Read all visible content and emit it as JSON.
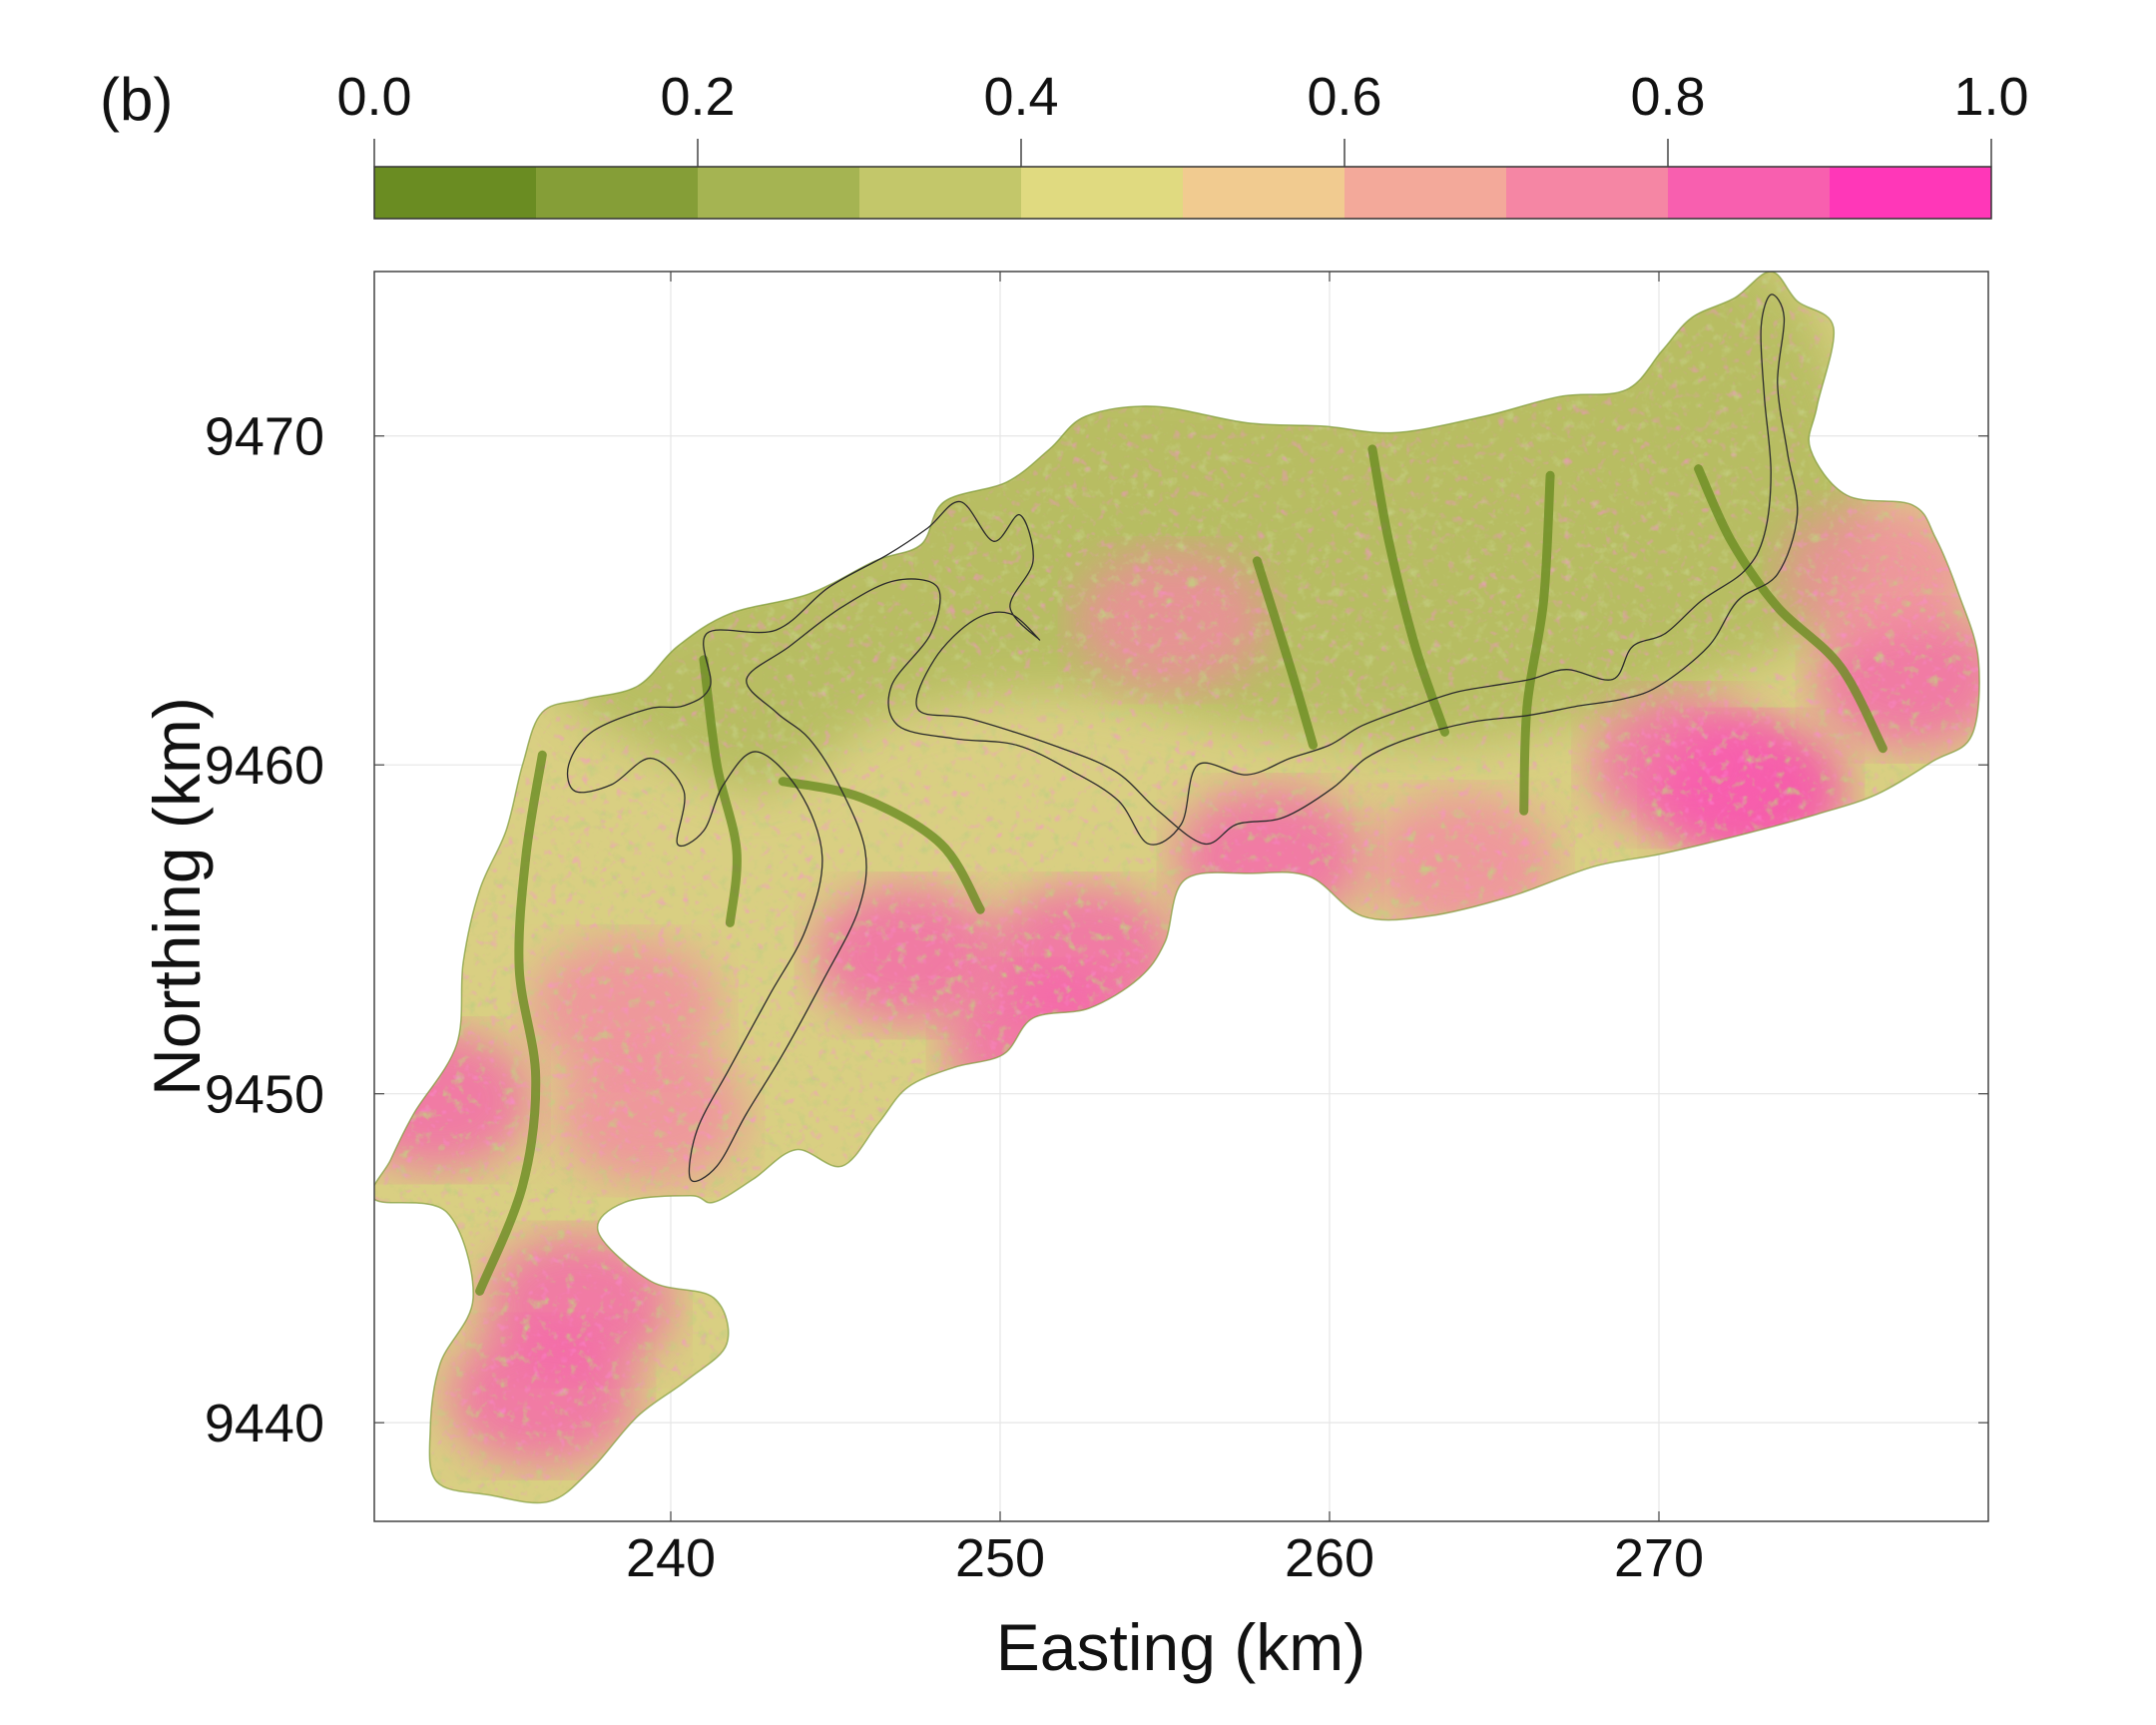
{
  "panel_label": "(b)",
  "colorbar": {
    "ticks": [
      "0.0",
      "0.2",
      "0.4",
      "0.6",
      "0.8",
      "1.0"
    ],
    "tick_values": [
      0.0,
      0.2,
      0.4,
      0.6,
      0.8,
      1.0
    ],
    "bins": [
      {
        "from": 0.0,
        "to": 0.1,
        "color": "#6a8c22"
      },
      {
        "from": 0.1,
        "to": 0.2,
        "color": "#859e37"
      },
      {
        "from": 0.2,
        "to": 0.3,
        "color": "#a5b452"
      },
      {
        "from": 0.3,
        "to": 0.4,
        "color": "#c3c76a"
      },
      {
        "from": 0.4,
        "to": 0.5,
        "color": "#e0da80"
      },
      {
        "from": 0.5,
        "to": 0.6,
        "color": "#f1cb90"
      },
      {
        "from": 0.6,
        "to": 0.7,
        "color": "#f3a99a"
      },
      {
        "from": 0.7,
        "to": 0.8,
        "color": "#f586a4"
      },
      {
        "from": 0.8,
        "to": 0.9,
        "color": "#f85faf"
      },
      {
        "from": 0.9,
        "to": 1.0,
        "color": "#ff37b8"
      }
    ]
  },
  "chart_data": {
    "type": "heatmap",
    "description_of_values": "raster field on 0.0 to 1.0 color scale",
    "xlabel": "Easting (km)",
    "ylabel": "Northing (km)",
    "xlim": [
      231,
      280
    ],
    "ylim": [
      9437,
      9475
    ],
    "xticks": [
      240,
      250,
      260,
      270
    ],
    "yticks": [
      9440,
      9450,
      9460,
      9470
    ],
    "grid": true,
    "region_outline": [
      [
        231.0,
        9446.8
      ],
      [
        233.2,
        9446.4
      ],
      [
        234.0,
        9443.8
      ],
      [
        233.0,
        9441.8
      ],
      [
        232.7,
        9439.8
      ],
      [
        232.9,
        9438.2
      ],
      [
        234.5,
        9437.8
      ],
      [
        236.3,
        9437.6
      ],
      [
        237.6,
        9438.6
      ],
      [
        239.0,
        9440.2
      ],
      [
        240.5,
        9441.3
      ],
      [
        241.7,
        9442.4
      ],
      [
        241.3,
        9443.8
      ],
      [
        239.4,
        9444.3
      ],
      [
        237.8,
        9445.8
      ],
      [
        238.6,
        9446.7
      ],
      [
        240.6,
        9446.9
      ],
      [
        241.3,
        9446.7
      ],
      [
        242.5,
        9447.4
      ],
      [
        243.8,
        9448.3
      ],
      [
        245.2,
        9447.8
      ],
      [
        246.3,
        9449.1
      ],
      [
        247.2,
        9450.2
      ],
      [
        248.6,
        9450.8
      ],
      [
        250.1,
        9451.2
      ],
      [
        251.0,
        9452.3
      ],
      [
        252.7,
        9452.6
      ],
      [
        254.2,
        9453.5
      ],
      [
        255.0,
        9454.6
      ],
      [
        255.6,
        9456.5
      ],
      [
        257.6,
        9456.7
      ],
      [
        259.4,
        9456.6
      ],
      [
        261.0,
        9455.4
      ],
      [
        263.0,
        9455.4
      ],
      [
        265.5,
        9456.0
      ],
      [
        268.0,
        9456.9
      ],
      [
        270.1,
        9457.3
      ],
      [
        272.6,
        9457.9
      ],
      [
        274.8,
        9458.5
      ],
      [
        276.6,
        9459.1
      ],
      [
        278.3,
        9460.1
      ],
      [
        279.5,
        9460.9
      ],
      [
        279.7,
        9463.2
      ],
      [
        279.1,
        9465.2
      ],
      [
        278.4,
        9466.9
      ],
      [
        277.7,
        9467.9
      ],
      [
        275.7,
        9468.2
      ],
      [
        274.6,
        9469.6
      ],
      [
        274.8,
        9470.9
      ],
      [
        275.3,
        9473.3
      ],
      [
        274.2,
        9474.1
      ],
      [
        273.4,
        9475.0
      ],
      [
        272.3,
        9474.2
      ],
      [
        271.0,
        9473.6
      ],
      [
        270.1,
        9472.6
      ],
      [
        269.0,
        9471.4
      ],
      [
        267.0,
        9471.2
      ],
      [
        264.7,
        9470.6
      ],
      [
        262.0,
        9470.1
      ],
      [
        259.8,
        9470.3
      ],
      [
        257.5,
        9470.4
      ],
      [
        254.7,
        9470.9
      ],
      [
        252.6,
        9470.6
      ],
      [
        251.5,
        9469.6
      ],
      [
        250.2,
        9468.6
      ],
      [
        248.3,
        9468.0
      ],
      [
        247.6,
        9466.7
      ],
      [
        246.2,
        9466.2
      ],
      [
        244.2,
        9465.2
      ],
      [
        241.8,
        9464.6
      ],
      [
        240.2,
        9463.6
      ],
      [
        239.0,
        9462.4
      ],
      [
        237.4,
        9462.0
      ],
      [
        236.1,
        9461.6
      ],
      [
        235.5,
        9460.0
      ],
      [
        235.0,
        9458.0
      ],
      [
        234.2,
        9456.2
      ],
      [
        233.7,
        9454.0
      ],
      [
        233.5,
        9451.5
      ],
      [
        232.2,
        9449.4
      ],
      [
        231.5,
        9448.0
      ]
    ],
    "inner_boundary": [
      [
        236.9,
        9460.0
      ],
      [
        237.6,
        9461.0
      ],
      [
        239.3,
        9461.7
      ],
      [
        240.4,
        9461.8
      ],
      [
        241.2,
        9462.4
      ],
      [
        241.1,
        9464.0
      ],
      [
        243.2,
        9464.1
      ],
      [
        244.8,
        9465.4
      ],
      [
        246.6,
        9466.4
      ],
      [
        247.8,
        9467.2
      ],
      [
        248.8,
        9468.0
      ],
      [
        249.8,
        9466.8
      ],
      [
        250.6,
        9467.6
      ],
      [
        251.0,
        9466.2
      ],
      [
        250.3,
        9464.8
      ],
      [
        251.2,
        9463.8
      ],
      [
        250.3,
        9464.6
      ],
      [
        249.2,
        9464.4
      ],
      [
        248.0,
        9463.2
      ],
      [
        247.5,
        9461.7
      ],
      [
        249.1,
        9461.4
      ],
      [
        251.6,
        9460.6
      ],
      [
        253.5,
        9459.8
      ],
      [
        254.8,
        9458.6
      ],
      [
        256.2,
        9457.6
      ],
      [
        257.2,
        9458.2
      ],
      [
        258.6,
        9458.4
      ],
      [
        260.1,
        9459.3
      ],
      [
        261.1,
        9460.2
      ],
      [
        262.4,
        9460.8
      ],
      [
        264.3,
        9461.3
      ],
      [
        266.0,
        9461.5
      ],
      [
        267.6,
        9461.8
      ],
      [
        268.9,
        9462.0
      ],
      [
        270.0,
        9462.4
      ],
      [
        271.5,
        9463.6
      ],
      [
        272.4,
        9465.0
      ],
      [
        273.6,
        9465.8
      ],
      [
        274.2,
        9467.6
      ],
      [
        273.9,
        9469.5
      ],
      [
        273.6,
        9471.6
      ],
      [
        273.8,
        9473.6
      ],
      [
        273.4,
        9474.3
      ],
      [
        273.1,
        9473.3
      ],
      [
        273.2,
        9471.2
      ],
      [
        273.4,
        9468.9
      ],
      [
        273.2,
        9467.0
      ],
      [
        272.6,
        9465.9
      ],
      [
        271.3,
        9465.0
      ],
      [
        270.2,
        9464.0
      ],
      [
        269.2,
        9463.6
      ],
      [
        268.6,
        9462.6
      ],
      [
        267.2,
        9462.9
      ],
      [
        266.1,
        9462.6
      ],
      [
        264.9,
        9462.4
      ],
      [
        263.8,
        9462.2
      ],
      [
        262.6,
        9461.8
      ],
      [
        261.0,
        9461.2
      ],
      [
        260.0,
        9460.6
      ],
      [
        258.8,
        9460.2
      ],
      [
        257.5,
        9459.7
      ],
      [
        256.0,
        9460.0
      ],
      [
        255.5,
        9458.2
      ],
      [
        254.5,
        9457.6
      ],
      [
        253.6,
        9458.9
      ],
      [
        252.2,
        9459.8
      ],
      [
        250.5,
        9460.6
      ],
      [
        248.6,
        9460.8
      ],
      [
        246.9,
        9461.2
      ],
      [
        246.7,
        9462.4
      ],
      [
        247.9,
        9464.0
      ],
      [
        248.1,
        9465.4
      ],
      [
        246.8,
        9465.6
      ],
      [
        245.2,
        9464.8
      ],
      [
        243.6,
        9463.6
      ],
      [
        242.3,
        9462.6
      ],
      [
        243.2,
        9461.6
      ],
      [
        244.2,
        9460.8
      ],
      [
        245.1,
        9459.4
      ],
      [
        245.9,
        9457.4
      ],
      [
        245.7,
        9455.6
      ],
      [
        244.6,
        9453.4
      ],
      [
        243.4,
        9451.2
      ],
      [
        242.3,
        9449.4
      ],
      [
        241.4,
        9447.8
      ],
      [
        240.6,
        9447.4
      ],
      [
        240.8,
        9448.9
      ],
      [
        241.8,
        9450.8
      ],
      [
        243.0,
        9453.0
      ],
      [
        244.1,
        9455.0
      ],
      [
        244.6,
        9457.2
      ],
      [
        243.9,
        9459.2
      ],
      [
        242.6,
        9460.4
      ],
      [
        241.6,
        9459.4
      ],
      [
        241.0,
        9458.0
      ],
      [
        240.2,
        9457.6
      ],
      [
        240.4,
        9459.2
      ],
      [
        239.4,
        9460.2
      ],
      [
        238.2,
        9459.4
      ],
      [
        237.1,
        9459.2
      ]
    ],
    "valleys": [
      [
        [
          234.2,
          9444.0
        ],
        [
          235.5,
          9447.2
        ],
        [
          235.9,
          9450.5
        ],
        [
          235.4,
          9453.8
        ],
        [
          235.6,
          9457.2
        ],
        [
          236.1,
          9460.3
        ]
      ],
      [
        [
          241.0,
          9463.2
        ],
        [
          241.4,
          9460.0
        ],
        [
          242.0,
          9457.4
        ],
        [
          241.8,
          9455.2
        ]
      ],
      [
        [
          243.4,
          9459.5
        ],
        [
          245.8,
          9459.0
        ],
        [
          248.2,
          9457.6
        ],
        [
          249.4,
          9455.6
        ]
      ],
      [
        [
          257.8,
          9466.2
        ],
        [
          258.8,
          9463.0
        ],
        [
          259.5,
          9460.6
        ]
      ],
      [
        [
          266.7,
          9468.8
        ],
        [
          266.5,
          9465.0
        ],
        [
          266.0,
          9461.8
        ],
        [
          265.9,
          9458.6
        ]
      ],
      [
        [
          271.2,
          9469.0
        ],
        [
          272.2,
          9466.8
        ],
        [
          273.6,
          9464.8
        ],
        [
          275.5,
          9463.0
        ],
        [
          276.8,
          9460.5
        ]
      ],
      [
        [
          261.3,
          9469.6
        ],
        [
          261.8,
          9466.8
        ],
        [
          262.6,
          9463.6
        ],
        [
          263.5,
          9461.0
        ]
      ]
    ],
    "hotspots": [
      {
        "x": 237.2,
        "y": 9443.6,
        "value": 0.9
      },
      {
        "x": 236.1,
        "y": 9440.8,
        "value": 0.85
      },
      {
        "x": 232.9,
        "y": 9449.8,
        "value": 0.85
      },
      {
        "x": 239.4,
        "y": 9449.4,
        "value": 0.8
      },
      {
        "x": 238.6,
        "y": 9452.6,
        "value": 0.8
      },
      {
        "x": 247.2,
        "y": 9454.2,
        "value": 0.85
      },
      {
        "x": 252.5,
        "y": 9454.2,
        "value": 0.85
      },
      {
        "x": 251.2,
        "y": 9451.6,
        "value": 0.9
      },
      {
        "x": 255.2,
        "y": 9464.4,
        "value": 0.8
      },
      {
        "x": 258.2,
        "y": 9457.2,
        "value": 0.85
      },
      {
        "x": 264.0,
        "y": 9457.0,
        "value": 0.8
      },
      {
        "x": 272.8,
        "y": 9459.2,
        "value": 0.95
      },
      {
        "x": 270.8,
        "y": 9460.0,
        "value": 0.9
      },
      {
        "x": 277.6,
        "y": 9462.6,
        "value": 0.85
      },
      {
        "x": 276.6,
        "y": 9465.8,
        "value": 0.75
      }
    ]
  }
}
